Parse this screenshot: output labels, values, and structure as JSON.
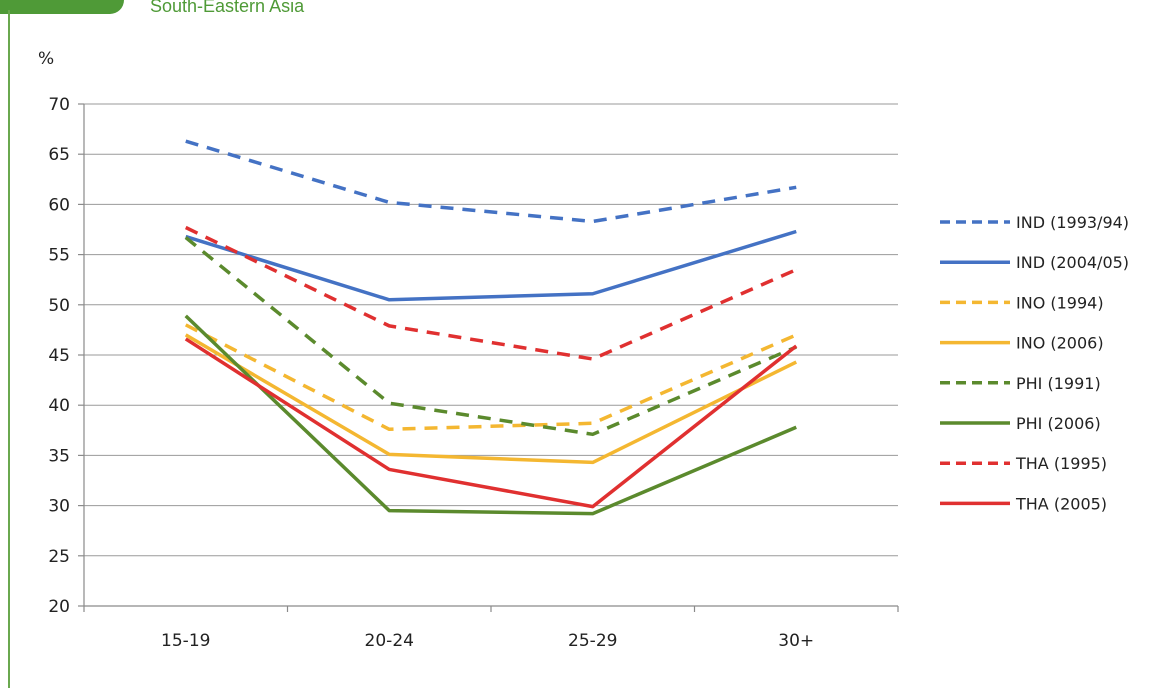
{
  "header": {
    "region_title": "South-Eastern Asia"
  },
  "chart_data": {
    "type": "line",
    "title": "",
    "ylabel": "%",
    "xlabel": "",
    "categories": [
      "15-19",
      "20-24",
      "25-29",
      "30+"
    ],
    "ylim": [
      20,
      70
    ],
    "yticks": [
      20,
      25,
      30,
      35,
      40,
      45,
      50,
      55,
      60,
      65,
      70
    ],
    "grid": true,
    "legend_position": "right",
    "series": [
      {
        "name": "IND (1993/94)",
        "color": "#4472c4",
        "dashed": true,
        "values": [
          66.3,
          60.2,
          58.3,
          61.7
        ]
      },
      {
        "name": "IND (2004/05)",
        "color": "#4472c4",
        "dashed": false,
        "values": [
          56.8,
          50.5,
          51.1,
          57.3
        ]
      },
      {
        "name": "INO (1994)",
        "color": "#f4b731",
        "dashed": true,
        "values": [
          48.0,
          37.6,
          38.2,
          47.0
        ]
      },
      {
        "name": "INO (2006)",
        "color": "#f4b731",
        "dashed": false,
        "values": [
          47.0,
          35.1,
          34.3,
          44.3
        ]
      },
      {
        "name": "PHI (1991)",
        "color": "#5b8a2d",
        "dashed": true,
        "values": [
          56.7,
          40.2,
          37.1,
          45.8
        ]
      },
      {
        "name": "PHI (2006)",
        "color": "#5b8a2d",
        "dashed": false,
        "values": [
          48.9,
          29.5,
          29.2,
          37.8
        ]
      },
      {
        "name": "THA (1995)",
        "color": "#e03030",
        "dashed": true,
        "values": [
          57.7,
          47.9,
          44.6,
          53.5
        ]
      },
      {
        "name": "THA (2005)",
        "color": "#e03030",
        "dashed": false,
        "values": [
          46.6,
          33.6,
          29.9,
          45.9
        ]
      }
    ]
  }
}
